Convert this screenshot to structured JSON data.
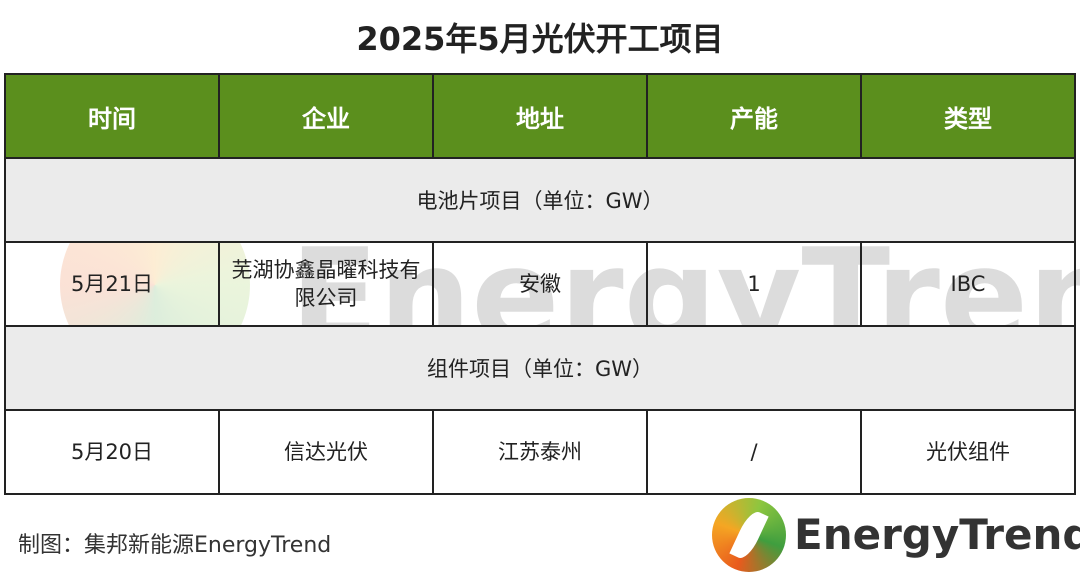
{
  "title": "2025年5月光伏开工项目",
  "table": {
    "headers": [
      "时间",
      "企业",
      "地址",
      "产能",
      "类型"
    ],
    "sections": [
      {
        "label": "电池片项目（单位：GW）",
        "rows": [
          [
            "5月21日",
            "芜湖协鑫晶曜科技有限公司",
            "安徽",
            "1",
            "IBC"
          ]
        ]
      },
      {
        "label": "组件项目（单位：GW）",
        "rows": [
          [
            "5月20日",
            "信达光伏",
            "江苏泰州",
            "/",
            "光伏组件"
          ]
        ]
      }
    ]
  },
  "footer": "制图：集邦新能源EnergyTrend",
  "logo": {
    "text": "EnergyTrend"
  },
  "watermark": "EnergyTrend",
  "colors": {
    "header_bg": "#5b8f1d",
    "section_bg": "#ebebeb"
  }
}
